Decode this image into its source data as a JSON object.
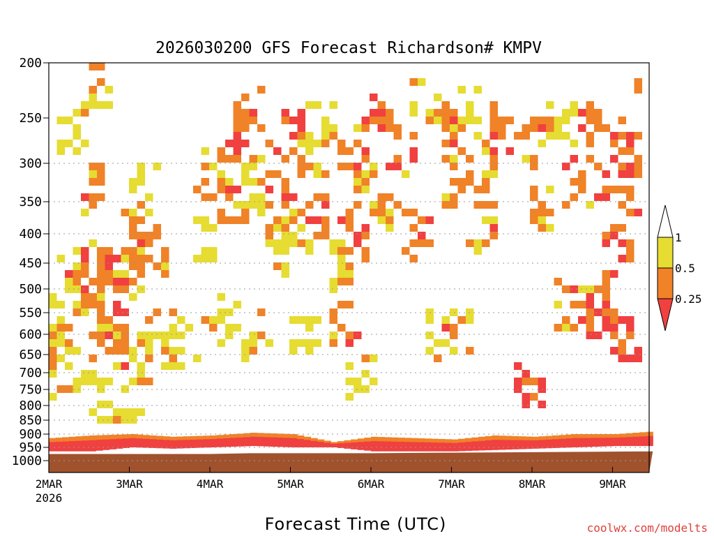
{
  "chart_data": {
    "type": "heatmap",
    "title": "2026030200 GFS Forecast Richardson# KMPV",
    "xlabel": "Forecast Time (UTC)",
    "ylabel": "",
    "credit": "coolwx.com/modelts",
    "x_start_label": "2MAR",
    "x_start_year": "2026",
    "x_ticks": [
      "3MAR",
      "4MAR",
      "5MAR",
      "6MAR",
      "7MAR",
      "8MAR",
      "9MAR"
    ],
    "x_range_days": [
      0,
      7.5
    ],
    "y_ticks": [
      200,
      250,
      300,
      350,
      400,
      450,
      500,
      550,
      600,
      650,
      700,
      750,
      800,
      850,
      900,
      950,
      1000
    ],
    "y_range_hpa": [
      200,
      1000
    ],
    "y_scale": "pressure (inverted)",
    "gridlines": "dotted, from 300 hPa down",
    "legend": {
      "position": "right",
      "labels": [
        "1",
        "0.5",
        "0.25"
      ],
      "bins": [
        {
          "range": "< 0.25",
          "color": "#f04040"
        },
        {
          "range": "0.25 - 0.5",
          "color": "#f08228"
        },
        {
          "range": "0.5 - 1",
          "color": "#e6dc32"
        },
        {
          "range": "> 1",
          "color": "#ffffff"
        }
      ]
    },
    "ground_color": "#a0522d",
    "regions": [
      {
        "day": 0.05,
        "p": 550,
        "ri": 0.6
      },
      {
        "day": 0.1,
        "p": 620,
        "ri": 0.4
      },
      {
        "day": 0.15,
        "p": 680,
        "ri": 0.6
      },
      {
        "day": 0.2,
        "p": 260,
        "ri": 0.7
      },
      {
        "day": 0.3,
        "p": 450,
        "ri": 0.6
      },
      {
        "day": 0.4,
        "p": 500,
        "ri": 0.35
      },
      {
        "day": 0.45,
        "p": 470,
        "ri": 0.3
      },
      {
        "day": 0.5,
        "p": 330,
        "ri": 0.4
      },
      {
        "day": 0.5,
        "p": 560,
        "ri": 0.45
      },
      {
        "day": 0.55,
        "p": 760,
        "ri": 0.7
      },
      {
        "day": 0.6,
        "p": 220,
        "ri": 0.45
      },
      {
        "day": 0.65,
        "p": 600,
        "ri": 0.4
      },
      {
        "day": 0.7,
        "p": 460,
        "ri": 0.3
      },
      {
        "day": 0.75,
        "p": 520,
        "ri": 0.2
      },
      {
        "day": 0.8,
        "p": 620,
        "ri": 0.35
      },
      {
        "day": 0.9,
        "p": 780,
        "ri": 0.6
      },
      {
        "day": 1.0,
        "p": 460,
        "ri": 0.6
      },
      {
        "day": 1.05,
        "p": 380,
        "ri": 0.35
      },
      {
        "day": 1.1,
        "p": 650,
        "ri": 0.6
      },
      {
        "day": 1.15,
        "p": 330,
        "ri": 0.7
      },
      {
        "day": 1.3,
        "p": 430,
        "ri": 0.4
      },
      {
        "day": 1.4,
        "p": 590,
        "ri": 0.6
      },
      {
        "day": 1.6,
        "p": 620,
        "ri": 0.7
      },
      {
        "day": 1.9,
        "p": 400,
        "ri": 0.7
      },
      {
        "day": 2.0,
        "p": 310,
        "ri": 0.4
      },
      {
        "day": 2.1,
        "p": 560,
        "ri": 0.6
      },
      {
        "day": 2.2,
        "p": 350,
        "ri": 0.4
      },
      {
        "day": 2.3,
        "p": 270,
        "ri": 0.3
      },
      {
        "day": 2.4,
        "p": 240,
        "ri": 0.3
      },
      {
        "day": 2.5,
        "p": 600,
        "ri": 0.6
      },
      {
        "day": 2.5,
        "p": 330,
        "ri": 0.7
      },
      {
        "day": 2.7,
        "p": 300,
        "ri": 0.4
      },
      {
        "day": 2.75,
        "p": 420,
        "ri": 0.6
      },
      {
        "day": 2.8,
        "p": 360,
        "ri": 0.3
      },
      {
        "day": 3.0,
        "p": 260,
        "ri": 0.2
      },
      {
        "day": 3.05,
        "p": 380,
        "ri": 0.6
      },
      {
        "day": 3.1,
        "p": 580,
        "ri": 0.7
      },
      {
        "day": 3.2,
        "p": 290,
        "ri": 0.4
      },
      {
        "day": 3.3,
        "p": 360,
        "ri": 0.3
      },
      {
        "day": 3.35,
        "p": 250,
        "ri": 0.6
      },
      {
        "day": 3.5,
        "p": 450,
        "ri": 0.6
      },
      {
        "day": 3.6,
        "p": 560,
        "ri": 0.4
      },
      {
        "day": 3.7,
        "p": 280,
        "ri": 0.35
      },
      {
        "day": 3.75,
        "p": 400,
        "ri": 0.3
      },
      {
        "day": 3.8,
        "p": 700,
        "ri": 0.6
      },
      {
        "day": 3.9,
        "p": 330,
        "ri": 0.4
      },
      {
        "day": 4.0,
        "p": 240,
        "ri": 0.3
      },
      {
        "day": 4.2,
        "p": 360,
        "ri": 0.6
      },
      {
        "day": 4.35,
        "p": 280,
        "ri": 0.35
      },
      {
        "day": 4.5,
        "p": 400,
        "ri": 0.3
      },
      {
        "day": 4.6,
        "p": 230,
        "ri": 0.6
      },
      {
        "day": 4.8,
        "p": 600,
        "ri": 0.6
      },
      {
        "day": 4.9,
        "p": 260,
        "ri": 0.3
      },
      {
        "day": 5.0,
        "p": 320,
        "ri": 0.4
      },
      {
        "day": 5.05,
        "p": 580,
        "ri": 0.4
      },
      {
        "day": 5.1,
        "p": 240,
        "ri": 0.6
      },
      {
        "day": 5.3,
        "p": 300,
        "ri": 0.4
      },
      {
        "day": 5.35,
        "p": 380,
        "ri": 0.4
      },
      {
        "day": 5.6,
        "p": 260,
        "ri": 0.3
      },
      {
        "day": 5.9,
        "p": 740,
        "ri": 0.2
      },
      {
        "day": 6.0,
        "p": 270,
        "ri": 0.4
      },
      {
        "day": 6.1,
        "p": 360,
        "ri": 0.4
      },
      {
        "day": 6.3,
        "p": 250,
        "ri": 0.6
      },
      {
        "day": 6.4,
        "p": 530,
        "ri": 0.4
      },
      {
        "day": 6.5,
        "p": 320,
        "ri": 0.4
      },
      {
        "day": 6.7,
        "p": 250,
        "ri": 0.35
      },
      {
        "day": 6.75,
        "p": 520,
        "ri": 0.4
      },
      {
        "day": 6.8,
        "p": 560,
        "ri": 0.2
      },
      {
        "day": 6.95,
        "p": 320,
        "ri": 0.3
      },
      {
        "day": 7.0,
        "p": 430,
        "ri": 0.3
      },
      {
        "day": 7.05,
        "p": 600,
        "ri": 0.3
      },
      {
        "day": 7.1,
        "p": 270,
        "ri": 0.3
      },
      {
        "day": 7.2,
        "p": 330,
        "ri": 0.3
      },
      {
        "day": 7.3,
        "p": 610,
        "ri": 0.2
      },
      {
        "day": 7.4,
        "p": 270,
        "ri": 0.2
      },
      {
        "day": 7.45,
        "p": 220,
        "ri": 0.35
      }
    ],
    "low_level_band": [
      {
        "day": 0.0,
        "p_top": 915,
        "p_bot": 965
      },
      {
        "day": 0.5,
        "p_top": 905,
        "p_bot": 965
      },
      {
        "day": 1.0,
        "p_top": 900,
        "p_bot": 950
      },
      {
        "day": 1.5,
        "p_top": 910,
        "p_bot": 955
      },
      {
        "day": 2.0,
        "p_top": 905,
        "p_bot": 950
      },
      {
        "day": 2.5,
        "p_top": 895,
        "p_bot": 945
      },
      {
        "day": 3.0,
        "p_top": 900,
        "p_bot": 950
      },
      {
        "day": 3.5,
        "p_top": 930,
        "p_bot": 950
      },
      {
        "day": 4.0,
        "p_top": 910,
        "p_bot": 965
      },
      {
        "day": 4.5,
        "p_top": 915,
        "p_bot": 965
      },
      {
        "day": 5.0,
        "p_top": 920,
        "p_bot": 965
      },
      {
        "day": 5.5,
        "p_top": 905,
        "p_bot": 960
      },
      {
        "day": 6.0,
        "p_top": 910,
        "p_bot": 955
      },
      {
        "day": 6.5,
        "p_top": 900,
        "p_bot": 950
      },
      {
        "day": 7.0,
        "p_top": 900,
        "p_bot": 945
      },
      {
        "day": 7.5,
        "p_top": 890,
        "p_bot": 945
      }
    ],
    "surface_pressure": [
      {
        "day": 0.0,
        "p": 975
      },
      {
        "day": 2.0,
        "p": 975
      },
      {
        "day": 2.5,
        "p": 972
      },
      {
        "day": 4.0,
        "p": 972
      },
      {
        "day": 5.0,
        "p": 970
      },
      {
        "day": 6.0,
        "p": 968
      },
      {
        "day": 7.0,
        "p": 966
      },
      {
        "day": 7.5,
        "p": 965
      }
    ]
  }
}
